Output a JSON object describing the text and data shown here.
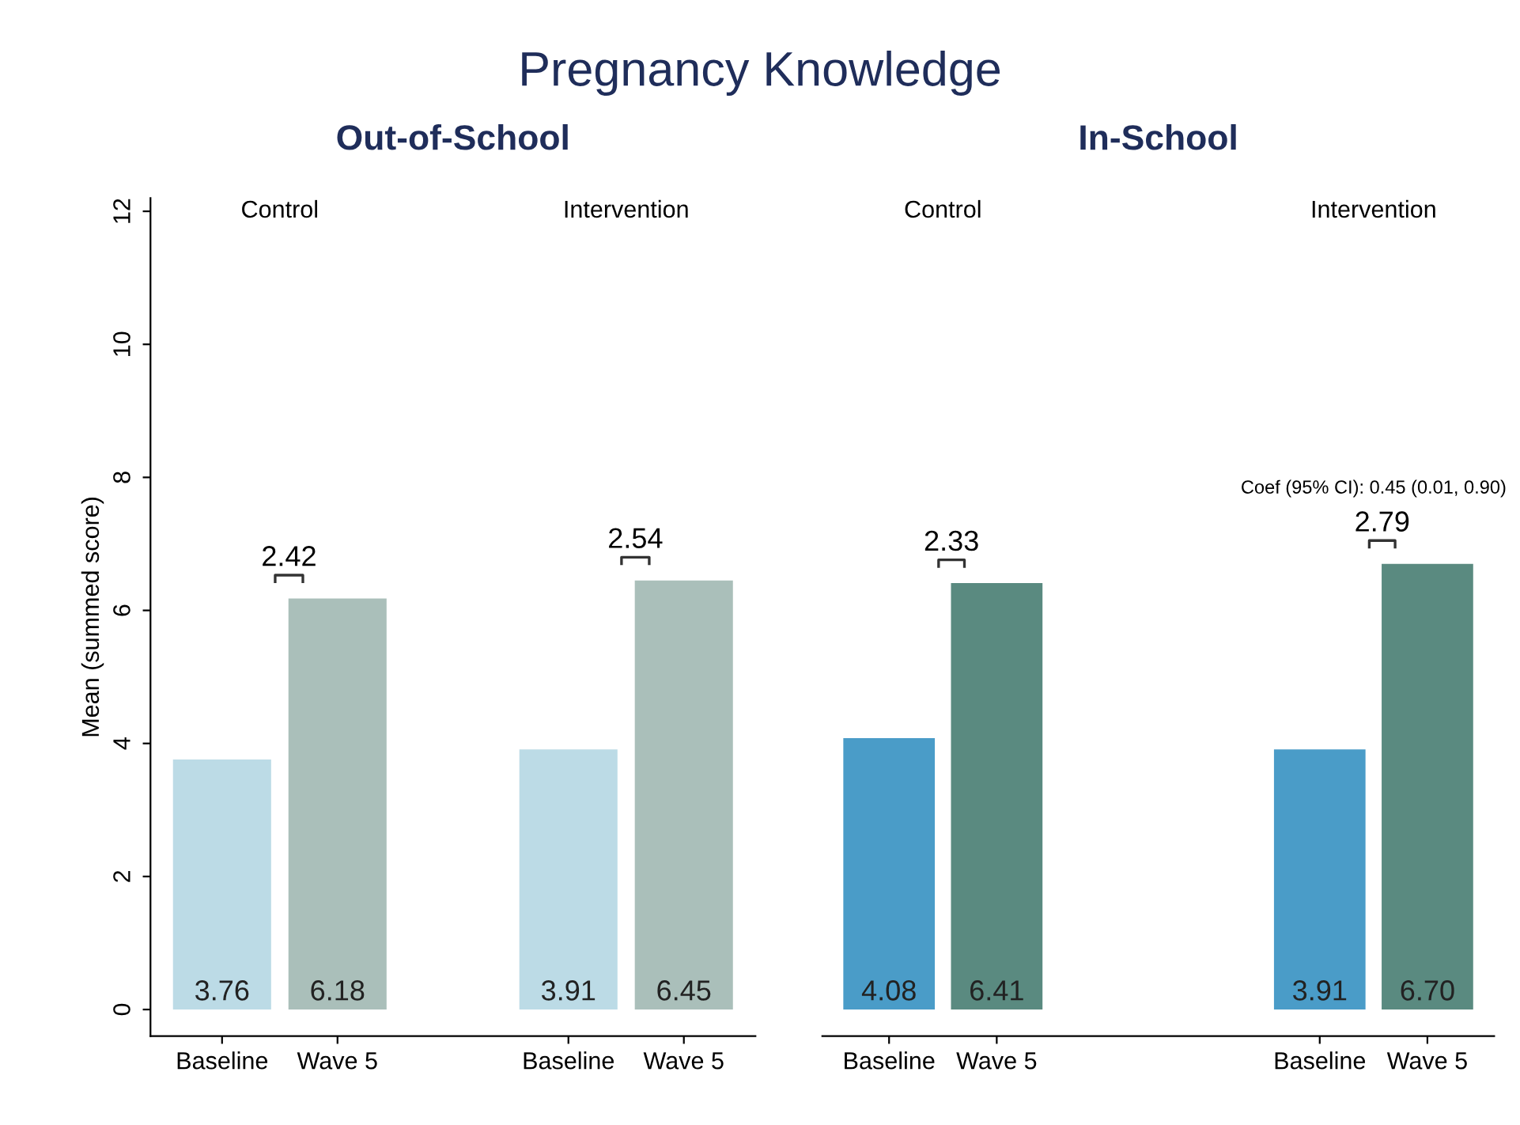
{
  "chart_data": [
    {
      "type": "bar",
      "title": "Pregnancy Knowledge",
      "subtitle": "Out-of-School",
      "ylabel": "Mean (summed score)",
      "categories": [
        "Baseline",
        "Wave 5",
        "Baseline",
        "Wave 5"
      ],
      "values": [
        3.76,
        6.18,
        3.91,
        6.45
      ],
      "colors": [
        "#bcdbe6",
        "#aabfba",
        "#bcdbe6",
        "#aabfba"
      ],
      "value_labels": [
        "3.76",
        "6.18",
        "3.91",
        "6.45"
      ],
      "ylim": [
        -0.4,
        12.2
      ],
      "yticks": [
        0,
        2,
        4,
        6,
        8,
        10,
        12
      ],
      "grid": false,
      "legend": false,
      "annotations": [
        "Control",
        "Intervention",
        "2.42",
        "2.54"
      ]
    },
    {
      "type": "bar",
      "subtitle": "In-School",
      "categories": [
        "Baseline",
        "Wave 5",
        "Baseline",
        "Wave 5"
      ],
      "values": [
        4.08,
        6.41,
        3.91,
        6.7
      ],
      "colors": [
        "#4a9cc8",
        "#5a8a80",
        "#4a9cc8",
        "#5a8a80"
      ],
      "value_labels": [
        "4.08",
        "6.41",
        "3.91",
        "6.70"
      ],
      "tick_labels": "x",
      "grid": false,
      "legend": false,
      "annotations": [
        "Control",
        "Intervention",
        "2.33",
        "2.79",
        "Coef (95% CI): 0.45 (0.01, 0.90)"
      ]
    }
  ]
}
